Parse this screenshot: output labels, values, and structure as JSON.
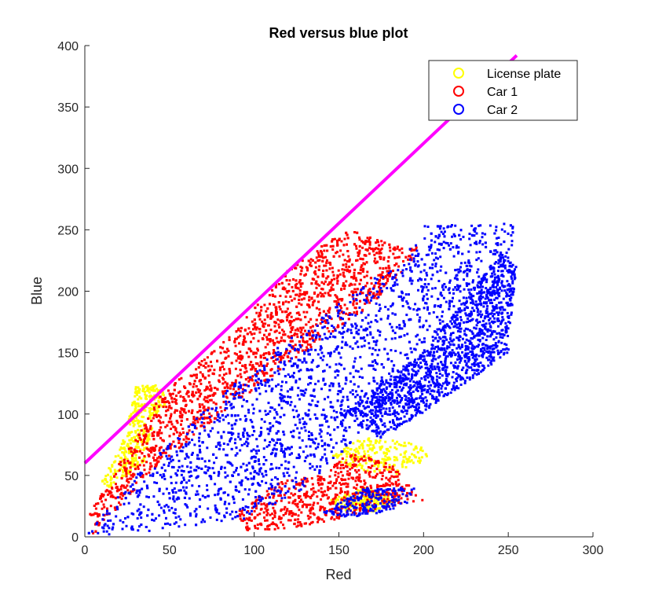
{
  "chart_data": {
    "type": "scatter",
    "title": "Red versus blue plot",
    "xlabel": "Red",
    "ylabel": "Blue",
    "xlim": [
      0,
      300
    ],
    "ylim": [
      0,
      400
    ],
    "xticks": [
      0,
      50,
      100,
      150,
      200,
      250,
      300
    ],
    "yticks": [
      0,
      50,
      100,
      150,
      200,
      250,
      300,
      350,
      400
    ],
    "grid": false,
    "legend_position": "top-right",
    "marker": "point",
    "series": [
      {
        "name": "License plate",
        "color": "#ffff00",
        "regions": [
          [
            [
              25,
              90
            ],
            [
              30,
              122
            ],
            [
              45,
              125
            ],
            [
              48,
              108
            ],
            [
              35,
              90
            ]
          ],
          [
            [
              10,
              45
            ],
            [
              25,
              85
            ],
            [
              40,
              90
            ],
            [
              35,
              60
            ],
            [
              15,
              40
            ]
          ],
          [
            [
              145,
              65
            ],
            [
              165,
              82
            ],
            [
              200,
              75
            ],
            [
              205,
              65
            ],
            [
              185,
              50
            ],
            [
              160,
              55
            ]
          ],
          [
            [
              145,
              30
            ],
            [
              165,
              40
            ],
            [
              185,
              30
            ],
            [
              170,
              20
            ],
            [
              150,
              22
            ]
          ]
        ]
      },
      {
        "name": "Car 1",
        "color": "#ff0000",
        "regions": [
          [
            [
              3,
              20
            ],
            [
              45,
              115
            ],
            [
              90,
              170
            ],
            [
              125,
              225
            ],
            [
              155,
              250
            ],
            [
              180,
              240
            ],
            [
              200,
              235
            ],
            [
              170,
              190
            ],
            [
              130,
              150
            ],
            [
              90,
              110
            ],
            [
              40,
              55
            ],
            [
              5,
              0
            ]
          ],
          [
            [
              90,
              20
            ],
            [
              115,
              45
            ],
            [
              140,
              50
            ],
            [
              155,
              70
            ],
            [
              180,
              60
            ],
            [
              200,
              30
            ],
            [
              150,
              15
            ],
            [
              120,
              5
            ],
            [
              95,
              5
            ]
          ]
        ]
      },
      {
        "name": "Car 2",
        "color": "#0000ff",
        "regions": [
          [
            [
              0,
              0
            ],
            [
              30,
              50
            ],
            [
              100,
              140
            ],
            [
              190,
              230
            ],
            [
              200,
              255
            ],
            [
              253,
              255
            ],
            [
              252,
              225
            ],
            [
              235,
              205
            ],
            [
              205,
              160
            ],
            [
              180,
              110
            ],
            [
              160,
              80
            ],
            [
              130,
              40
            ],
            [
              95,
              15
            ],
            [
              40,
              5
            ]
          ],
          [
            [
              150,
              100
            ],
            [
              200,
              150
            ],
            [
              245,
              230
            ],
            [
              255,
              220
            ],
            [
              250,
              150
            ],
            [
              210,
              110
            ],
            [
              175,
              80
            ]
          ],
          [
            [
              140,
              20
            ],
            [
              165,
              40
            ],
            [
              195,
              40
            ],
            [
              190,
              25
            ],
            [
              160,
              15
            ]
          ]
        ]
      }
    ],
    "reference_line": {
      "color": "#ff00ff",
      "x": [
        0,
        255
      ],
      "y": [
        60,
        392
      ]
    }
  }
}
